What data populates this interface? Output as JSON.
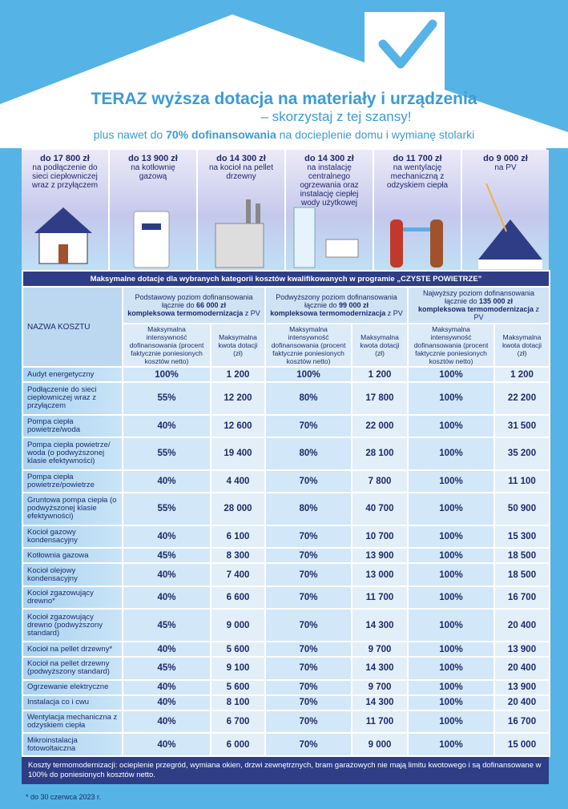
{
  "header": {
    "title": "TERAZ wyższa dotacja na materiały i urządzenia",
    "subtitle": "– skorzystaj z tej szansy!",
    "tagline": {
      "pre": "plus nawet do",
      "bold": "70% dofinansowania",
      "post": "na docieplenie domu i wymianę stolarki"
    }
  },
  "cards": [
    {
      "amount": "do 17 800 zł",
      "text": "na podłączenie do sieci ciepłowniczej wraz z przyłączem"
    },
    {
      "amount": "do 13 900 zł",
      "text": "na kotłownię gazową"
    },
    {
      "amount": "do 14 300 zł",
      "text": "na kocioł na pellet drzewny"
    },
    {
      "amount": "do 14 300 zł",
      "text": "na instalację centralnego ogrzewania oraz instalację ciepłej wody użytkowej"
    },
    {
      "amount": "do 11 700 zł",
      "text": "na wentylację mechaniczną z odzyskiem ciepła"
    },
    {
      "amount": "do 9 000 zł",
      "text": "na PV"
    }
  ],
  "table": {
    "caption": "Maksymalne dotacje dla wybranych kategorii kosztów kwalifikowanych w programie „CZYSTE POWIETRZE”",
    "name_header": "NAZWA KOSZTU",
    "tiers": [
      {
        "line1": "Podstawowy poziom dofinansowania",
        "pre": "łącznie do",
        "amount": "66 000 zł",
        "scope": "kompleksowa termomodernizacja",
        "suffix": "z PV"
      },
      {
        "line1": "Podwyższony poziom dofinansowania",
        "pre": "łącznie do",
        "amount": "99 000 zł",
        "scope": "kompleksowa termomodernizacja",
        "suffix": "z PV"
      },
      {
        "line1": "Najwyższy poziom dofinansowania",
        "pre": "łącznie do",
        "amount": "135 000 zł",
        "scope": "kompleksowa termomodernizacja",
        "suffix": "z PV"
      }
    ],
    "sub_percent": "Maksymalna intensywność dofinansowania (procent faktycznie poniesionych kosztów netto)",
    "sub_amount": "Maksymalna kwota dotacji (zł)",
    "rows": [
      [
        "Audyt energetyczny",
        "100%",
        "1 200",
        "100%",
        "1 200",
        "100%",
        "1 200"
      ],
      [
        "Podłączenie do sieci ciepłowniczej wraz z przyłączem",
        "55%",
        "12 200",
        "80%",
        "17 800",
        "100%",
        "22 200"
      ],
      [
        "Pompa ciepła powietrze/woda",
        "40%",
        "12 600",
        "70%",
        "22 000",
        "100%",
        "31 500"
      ],
      [
        "Pompa ciepła powietrze/ woda (o podwyższonej klasie efektywności)",
        "55%",
        "19 400",
        "80%",
        "28 100",
        "100%",
        "35 200"
      ],
      [
        "Pompa ciepła powietrze/powietrze",
        "40%",
        "4 400",
        "70%",
        "7 800",
        "100%",
        "11 100"
      ],
      [
        "Gruntowa pompa ciepła (o podwyższonej klasie efektywności)",
        "55%",
        "28 000",
        "80%",
        "40 700",
        "100%",
        "50 900"
      ],
      [
        "Kocioł gazowy kondensacyjny",
        "40%",
        "6 100",
        "70%",
        "10 700",
        "100%",
        "15 300"
      ],
      [
        "Kotłownia gazowa",
        "45%",
        "8 300",
        "70%",
        "13 900",
        "100%",
        "18 500"
      ],
      [
        "Kocioł olejowy kondensacyjny",
        "40%",
        "7 400",
        "70%",
        "13 000",
        "100%",
        "18 500"
      ],
      [
        "Kocioł zgazowujący drewno*",
        "40%",
        "6 600",
        "70%",
        "11 700",
        "100%",
        "16 700"
      ],
      [
        "Kocioł zgazowujący drewno (podwyższony standard)",
        "45%",
        "9 000",
        "70%",
        "14 300",
        "100%",
        "20 400"
      ],
      [
        "Kocioł na pellet drzewny*",
        "40%",
        "5 600",
        "70%",
        "9 700",
        "100%",
        "13 900"
      ],
      [
        "Kocioł na pellet drzewny (podwyższony standard)",
        "45%",
        "9 100",
        "70%",
        "14 300",
        "100%",
        "20 400"
      ],
      [
        "Ogrzewanie elektryczne",
        "40%",
        "5 600",
        "70%",
        "9 700",
        "100%",
        "13 900"
      ],
      [
        "Instalacja co i cwu",
        "40%",
        "8 100",
        "70%",
        "14 300",
        "100%",
        "20 400"
      ],
      [
        "Wentylacja mechaniczna z odzyskiem ciepła",
        "40%",
        "6 700",
        "70%",
        "11 700",
        "100%",
        "16 700"
      ],
      [
        "Mikroinstalacja fotowoltaiczna",
        "40%",
        "6 000",
        "70%",
        "9 000",
        "100%",
        "15 000"
      ]
    ],
    "footer": "Koszty termomodernizacji: ocieplenie przegród, wymiana okien, drzwi zewnętrznych, bram garażowych nie mają limitu kwotowego i są dofinansowane w 100% do poniesionych kosztów netto."
  },
  "note": "* do 30 czerwca 2023 r."
}
